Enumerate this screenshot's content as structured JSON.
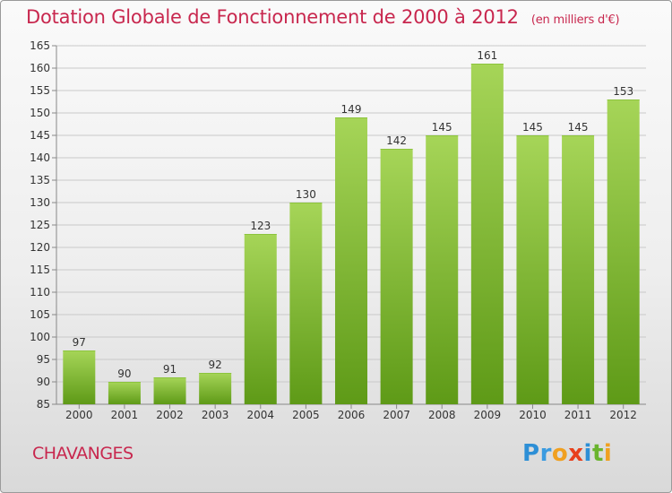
{
  "header": {
    "title": "Dotation Globale de Fonctionnement de 2000 à 2012",
    "unit": "(en milliers d'€)"
  },
  "footer": {
    "commune": "CHAVANGES",
    "logo_letters": [
      "P",
      "r",
      "o",
      "x",
      "i",
      "t",
      "i"
    ],
    "logo_colors": [
      "#2d8fd6",
      "#3a9be0",
      "#f0a020",
      "#e8401c",
      "#2d8fd6",
      "#6ab42e",
      "#f0a020"
    ]
  },
  "colors": {
    "bar_top": "#a6d558",
    "bar_bottom": "#5e9a17",
    "grid": "#c9c9c9",
    "axis_text": "#333333",
    "accent": "#c8274e"
  },
  "chart_data": {
    "type": "bar",
    "categories": [
      "2000",
      "2001",
      "2002",
      "2003",
      "2004",
      "2005",
      "2006",
      "2007",
      "2008",
      "2009",
      "2010",
      "2011",
      "2012"
    ],
    "values": [
      97,
      90,
      91,
      92,
      123,
      130,
      149,
      142,
      145,
      161,
      145,
      145,
      153
    ],
    "ylim": [
      85,
      165
    ],
    "yticks": [
      85,
      90,
      95,
      100,
      105,
      110,
      115,
      120,
      125,
      130,
      135,
      140,
      145,
      150,
      155,
      160,
      165
    ],
    "grid": true,
    "data_labels": true
  }
}
